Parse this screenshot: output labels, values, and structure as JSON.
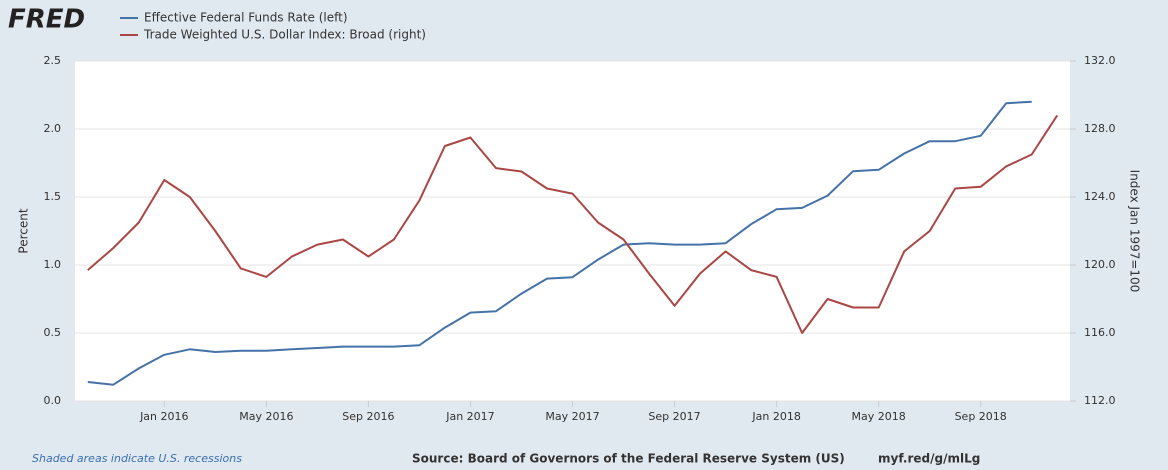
{
  "brand": "FRED",
  "chart_data": {
    "type": "line",
    "ylabel": "Percent",
    "y2label": "Index Jan 1997=100",
    "note": "Shaded areas indicate U.S. recessions",
    "source": "Source: Board of Governors of the Federal Reserve System (US)",
    "link": "myf.red/g/mlLg",
    "categories": [
      null,
      null,
      null,
      "Jan 2016",
      null,
      null,
      null,
      "May 2016",
      null,
      null,
      null,
      "Sep 2016",
      null,
      null,
      null,
      "Jan 2017",
      null,
      null,
      null,
      "May 2017",
      null,
      null,
      null,
      "Sep 2017",
      null,
      null,
      null,
      "Jan 2018",
      null,
      null,
      null,
      "May 2018",
      null,
      null,
      null,
      "Sep 2018",
      null,
      null,
      null
    ],
    "series": [
      {
        "name": "Effective Federal Funds Rate (left)",
        "color": "#4572a7",
        "values": [
          0.14,
          0.12,
          0.24,
          0.34,
          0.38,
          0.36,
          0.37,
          0.37,
          0.38,
          0.39,
          0.4,
          0.4,
          0.4,
          0.41,
          0.54,
          0.65,
          0.66,
          0.79,
          0.9,
          0.91,
          1.04,
          1.15,
          1.16,
          1.15,
          1.15,
          1.16,
          1.3,
          1.41,
          1.42,
          1.51,
          1.69,
          1.7,
          1.82,
          1.91,
          1.91,
          1.95,
          2.19,
          2.2,
          null
        ]
      },
      {
        "name": "Trade Weighted U.S. Dollar Index: Broad (right)",
        "color": "#aa4643",
        "axis": "y2",
        "values": [
          119.7,
          121.0,
          122.5,
          125.0,
          124.0,
          122.0,
          119.8,
          119.3,
          120.5,
          121.2,
          121.5,
          120.5,
          121.5,
          123.8,
          127.0,
          127.5,
          125.7,
          125.5,
          124.5,
          124.2,
          122.5,
          121.5,
          119.5,
          117.6,
          119.5,
          120.8,
          119.7,
          119.3,
          116.0,
          118.0,
          117.5,
          117.5,
          120.8,
          122.0,
          124.5,
          124.6,
          125.8,
          126.5,
          128.8
        ]
      }
    ],
    "ylim": [
      0,
      2.5
    ],
    "yticks": [
      {
        "value": 0,
        "label": "0.0"
      },
      0.5,
      {
        "value": 1,
        "label": "1.0"
      },
      1.5,
      {
        "value": 2,
        "label": "2.0"
      },
      2.5
    ],
    "y2lim": [
      112,
      132
    ],
    "y2ticks": [
      {
        "value": 112,
        "label": "112.0"
      },
      {
        "value": 116,
        "label": "116.0"
      },
      {
        "value": 120,
        "label": "120.0"
      },
      {
        "value": 124,
        "label": "124.0"
      },
      {
        "value": 128,
        "label": "128.0"
      },
      {
        "value": 132,
        "label": "132.0"
      }
    ],
    "grid": true
  }
}
